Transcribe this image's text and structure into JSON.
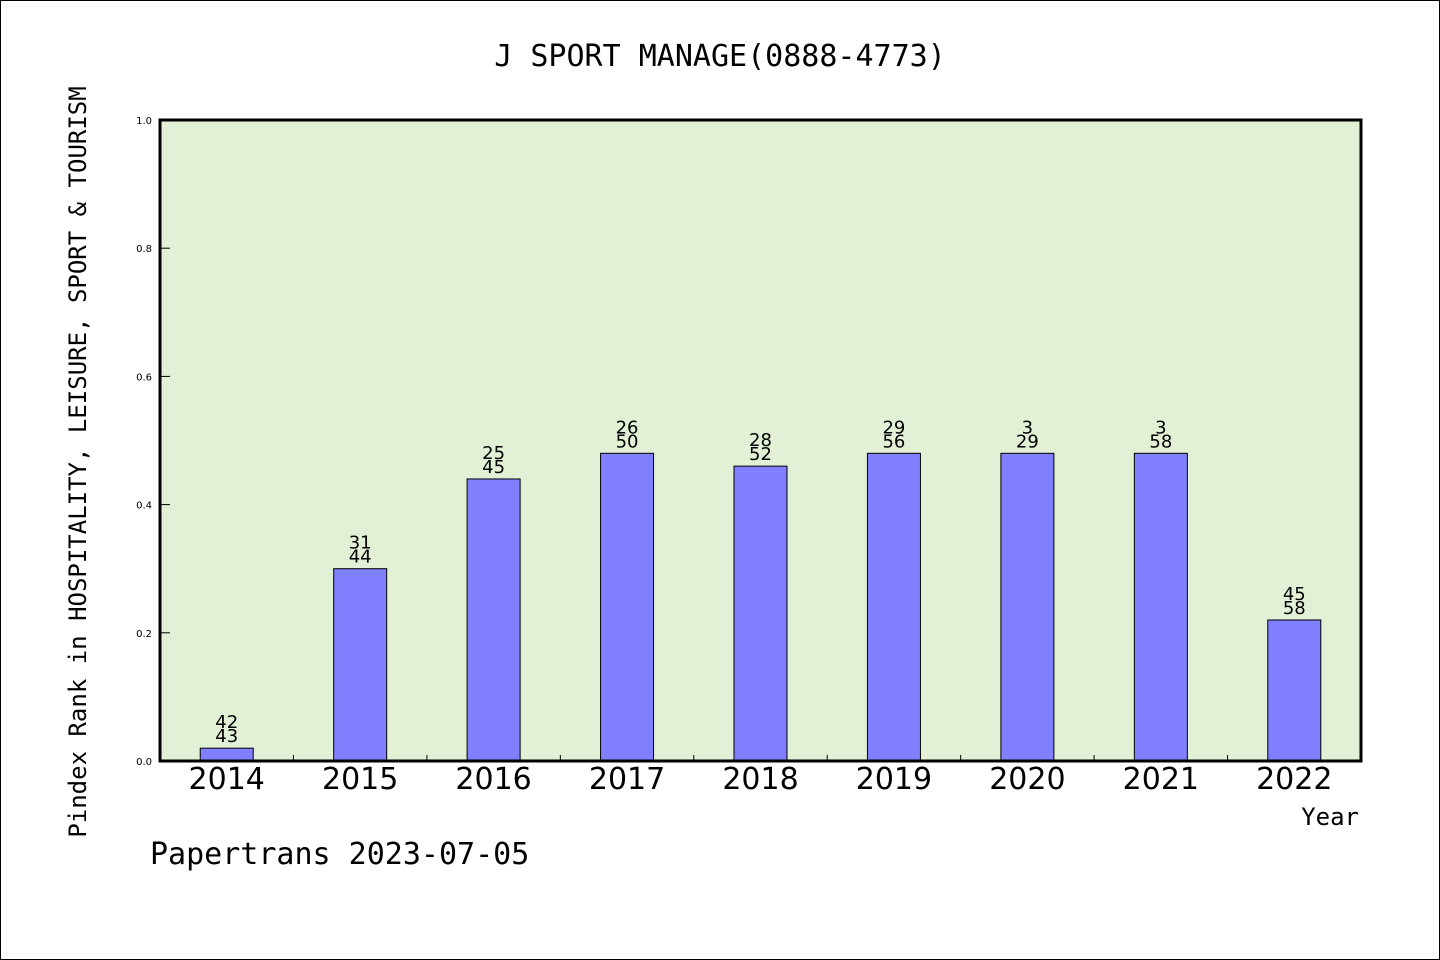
{
  "chart_data": {
    "type": "bar",
    "title": "J SPORT MANAGE(0888-4773)",
    "xlabel": "Year",
    "ylabel": "Pindex Rank in HOSPITALITY, LEISURE, SPORT & TOURISM",
    "ylim": [
      0.0,
      1.0
    ],
    "yticks": [
      "0.0",
      "0.2",
      "0.4",
      "0.6",
      "0.8",
      "1.0"
    ],
    "categories": [
      "2014",
      "2015",
      "2016",
      "2017",
      "2018",
      "2019",
      "2020",
      "2021",
      "2022"
    ],
    "values": [
      0.02,
      0.3,
      0.44,
      0.48,
      0.46,
      0.48,
      0.48,
      0.48,
      0.22
    ],
    "labels_top": [
      "42",
      "31",
      "25",
      "26",
      "28",
      "29",
      "3",
      "3",
      "45"
    ],
    "labels_bottom": [
      "43",
      "44",
      "45",
      "50",
      "52",
      "56",
      "29",
      "58",
      "58"
    ],
    "grid": false,
    "colors": {
      "bar": "#8080ff",
      "plot_bg": "#e2f0d6"
    }
  },
  "footer": "Papertrans 2023-07-05"
}
